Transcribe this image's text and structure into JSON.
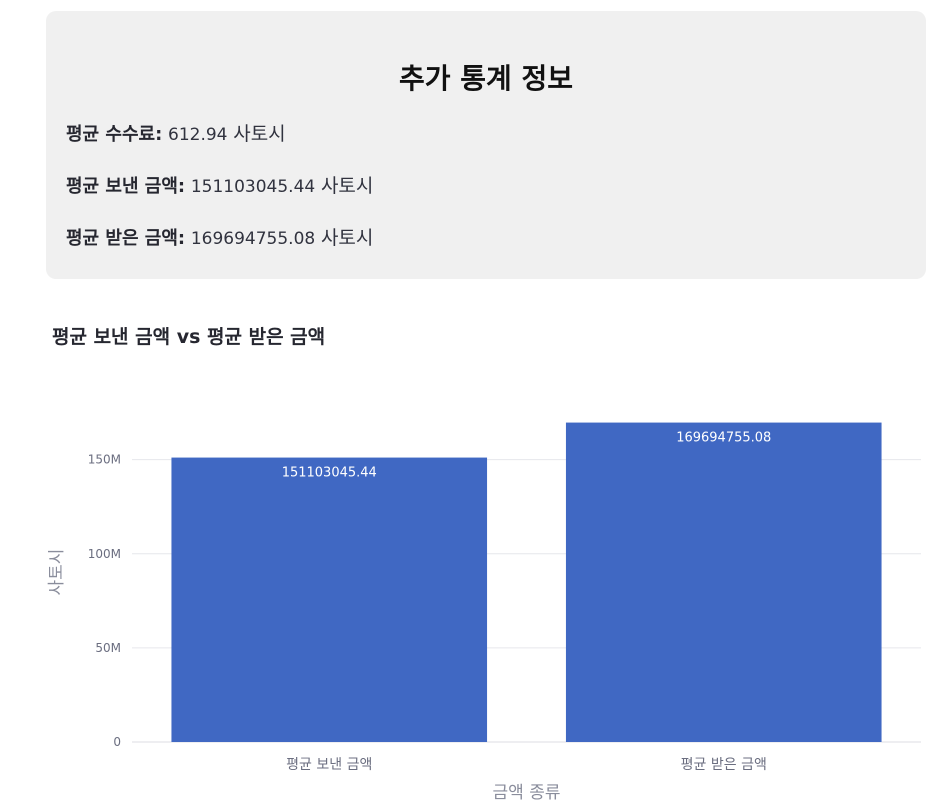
{
  "stats": {
    "title": "추가 통계 정보",
    "items": [
      {
        "label": "평균 수수료:",
        "value": "612.94",
        "unit": "사토시"
      },
      {
        "label": "평균 보낸 금액:",
        "value": "151103045.44",
        "unit": "사토시"
      },
      {
        "label": "평균 받은 금액:",
        "value": "169694755.08",
        "unit": "사토시"
      }
    ]
  },
  "chart_heading": "평균 보낸 금액 vs 평균 받은 금액",
  "chart_data": {
    "type": "bar",
    "categories": [
      "평균 보낸 금액",
      "평균 받은 금액"
    ],
    "values": [
      151103045.44,
      169694755.08
    ],
    "data_labels": [
      "151103045.44",
      "169694755.08"
    ],
    "xlabel": "금액 종류",
    "ylabel": "사토시",
    "ylim": [
      0,
      170000000
    ],
    "yticks": [
      0,
      50000000,
      100000000,
      150000000
    ],
    "ytick_labels": [
      "0",
      "50M",
      "100M",
      "150M"
    ],
    "grid": true,
    "bar_color": "#4068c3"
  }
}
